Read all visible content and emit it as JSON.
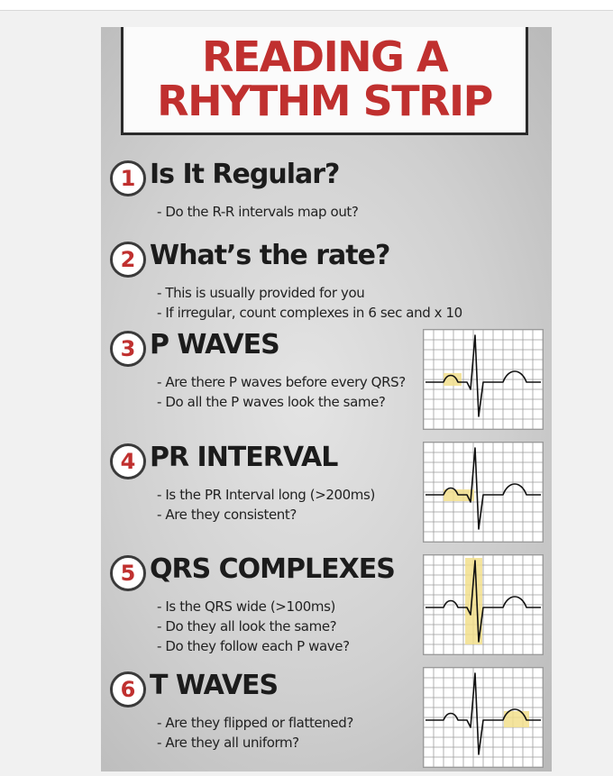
{
  "title": {
    "line1": "READING A",
    "line2": "RHYTHM STRIP"
  },
  "steps": [
    {
      "number": "1",
      "heading": "Is It Regular?",
      "bullets": [
        "- Do the R-R intervals map out?"
      ]
    },
    {
      "number": "2",
      "heading": "What’s the rate?",
      "bullets": [
        "- This is usually provided for you",
        "- If irregular, count complexes in 6 sec and x 10"
      ]
    },
    {
      "number": "3",
      "heading": "P WAVES",
      "bullets": [
        "- Are there P waves before every QRS?",
        "- Do all the P waves look the same?"
      ]
    },
    {
      "number": "4",
      "heading": "PR INTERVAL",
      "bullets": [
        "- Is the PR Interval long (>200ms)",
        "- Are they consistent?"
      ]
    },
    {
      "number": "5",
      "heading": "QRS COMPLEXES",
      "bullets": [
        "- Is the QRS wide (>100ms)",
        "- Do they all look the same?",
        "- Do they follow each P wave?"
      ]
    },
    {
      "number": "6",
      "heading": "T WAVES",
      "bullets": [
        "- Are they flipped or flattened?",
        "- Are they all uniform?"
      ]
    }
  ],
  "colors": {
    "title_red": "#c0302f",
    "highlight": "#f2df8c",
    "grid": "#9c9c9c",
    "trace": "#111111"
  }
}
